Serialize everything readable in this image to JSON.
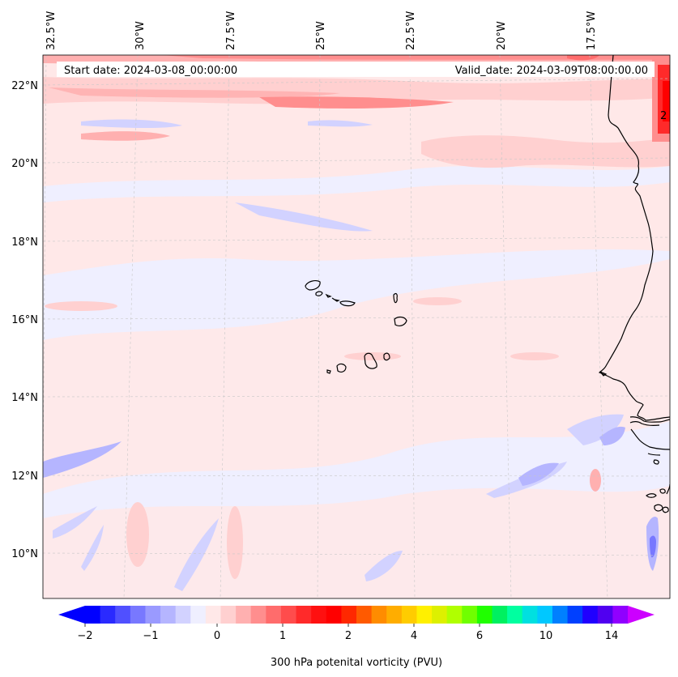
{
  "map": {
    "region": "Eastern tropical North Atlantic, Cape Verde Islands and West African coast",
    "lon_labels": [
      "32.5°W",
      "30°W",
      "27.5°W",
      "25°W",
      "22.5°W",
      "20°W",
      "17.5°W"
    ],
    "lat_labels": [
      "22°N",
      "20°N",
      "18°N",
      "16°N",
      "14°N",
      "12°N",
      "10°N"
    ],
    "lon_values": [
      -32.5,
      -30,
      -27.5,
      -25,
      -22.5,
      -20,
      -17.5
    ],
    "lat_values": [
      22,
      20,
      18,
      16,
      14,
      12,
      10
    ],
    "lon_range": [
      -32.5,
      -15.2
    ],
    "lat_range": [
      9.0,
      22.8
    ]
  },
  "header": {
    "start_date": "Start date: 2024-03-08_00:00:00",
    "valid_date": "Valid_date: 2024-03-09T08:00:00.00"
  },
  "edge_label": "2",
  "colorbar": {
    "label": "300 hPa potenital vorticity (PVU)",
    "ticks": [
      "−2",
      "−1",
      "0",
      "1",
      "2",
      "4",
      "6",
      "10",
      "14"
    ],
    "tick_values": [
      -2,
      -1,
      0,
      1,
      2,
      4,
      6,
      10,
      14
    ],
    "colors": [
      "#0000ff",
      "#2a2aff",
      "#5050ff",
      "#7878ff",
      "#9a9aff",
      "#b5b5ff",
      "#d2d2ff",
      "#efefff",
      "#ffe8e8",
      "#ffd0d0",
      "#ffb0b0",
      "#ff8e8e",
      "#ff6c6c",
      "#ff4c4c",
      "#ff2a2a",
      "#ff1010",
      "#ff0000",
      "#ff2800",
      "#ff5a00",
      "#ff8c00",
      "#ffad00",
      "#ffcc00",
      "#fff000",
      "#ddf000",
      "#b0ff00",
      "#70ff00",
      "#20ff00",
      "#00f060",
      "#00ffa0",
      "#00e0e0",
      "#00c8ff",
      "#0080ff",
      "#0040ff",
      "#2000ff",
      "#5000f0",
      "#9000ff"
    ],
    "under_color": "#0000ff",
    "over_color": "#cc00ff"
  },
  "colors": {
    "background": "#efefff",
    "coast": "#000000",
    "grid": "#c8c8c8"
  }
}
